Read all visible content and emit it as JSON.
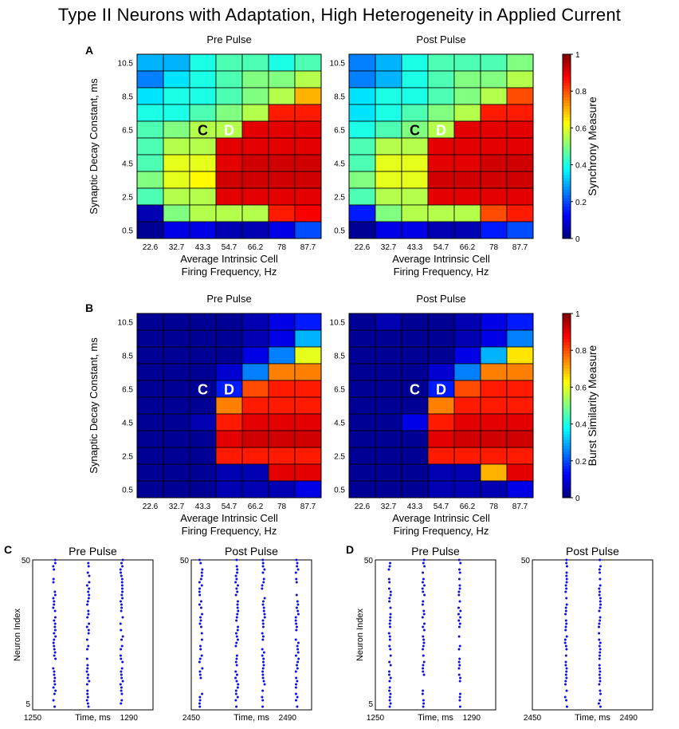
{
  "figure_title": "Type II Neurons with Adaptation, High Heterogeneity in Applied Current",
  "colors": {
    "scatter_dot": "#1010e0",
    "grid": "#000000"
  },
  "chart_data": [
    {
      "id": "A",
      "panel_label": "A",
      "type": "heatmap",
      "measure": "synchrony",
      "subplot_titles": [
        "Pre Pulse",
        "Post Pulse"
      ],
      "xlabel": [
        "Average Intrinsic Cell",
        "Firing Frequency, Hz"
      ],
      "ylabel": "Synaptic Decay Constant, ms",
      "x_ticks": [
        "22.6",
        "32.7",
        "43.3",
        "54.7",
        "66.2",
        "78",
        "87.7"
      ],
      "y_ticks_top_to_bottom": [
        "10.5",
        "8.5",
        "6.5",
        "4.5",
        "2.5",
        "0.5"
      ],
      "colorbar": {
        "label": "Synchrony Measure",
        "min": 0,
        "max": 1,
        "ticks": [
          "0",
          "0.2",
          "0.4",
          "0.6",
          "0.8",
          "1"
        ]
      },
      "markers": [
        {
          "text": "C",
          "col": 2,
          "row": 4,
          "color": "#000000"
        },
        {
          "text": "D",
          "col": 3,
          "row": 4,
          "color": "#ffffff"
        }
      ],
      "grids": [
        [
          [
            0.3,
            0.3,
            0.4,
            0.45,
            0.45,
            0.4,
            0.45
          ],
          [
            0.25,
            0.35,
            0.4,
            0.45,
            0.5,
            0.5,
            0.55
          ],
          [
            0.35,
            0.4,
            0.4,
            0.45,
            0.5,
            0.55,
            0.7
          ],
          [
            0.4,
            0.4,
            0.45,
            0.5,
            0.55,
            0.85,
            0.85
          ],
          [
            0.45,
            0.5,
            0.55,
            0.55,
            0.9,
            0.9,
            0.9
          ],
          [
            0.45,
            0.55,
            0.55,
            0.9,
            0.9,
            0.9,
            0.9
          ],
          [
            0.45,
            0.6,
            0.6,
            0.9,
            0.92,
            0.92,
            0.92
          ],
          [
            0.5,
            0.6,
            0.63,
            0.92,
            0.92,
            0.92,
            0.92
          ],
          [
            0.45,
            0.55,
            0.55,
            0.9,
            0.9,
            0.9,
            0.9
          ],
          [
            0.05,
            0.5,
            0.55,
            0.55,
            0.55,
            0.85,
            0.88
          ],
          [
            0.02,
            0.1,
            0.1,
            0.05,
            0.05,
            0.1,
            0.2
          ]
        ],
        [
          [
            0.25,
            0.3,
            0.4,
            0.45,
            0.45,
            0.45,
            0.5
          ],
          [
            0.25,
            0.3,
            0.4,
            0.45,
            0.5,
            0.5,
            0.55
          ],
          [
            0.35,
            0.4,
            0.4,
            0.45,
            0.5,
            0.55,
            0.8
          ],
          [
            0.35,
            0.4,
            0.45,
            0.5,
            0.55,
            0.85,
            0.85
          ],
          [
            0.4,
            0.45,
            0.5,
            0.55,
            0.9,
            0.9,
            0.9
          ],
          [
            0.45,
            0.55,
            0.55,
            0.9,
            0.9,
            0.9,
            0.9
          ],
          [
            0.45,
            0.6,
            0.6,
            0.9,
            0.9,
            0.92,
            0.92
          ],
          [
            0.5,
            0.6,
            0.6,
            0.92,
            0.92,
            0.92,
            0.92
          ],
          [
            0.45,
            0.55,
            0.55,
            0.9,
            0.9,
            0.9,
            0.9
          ],
          [
            0.15,
            0.5,
            0.55,
            0.55,
            0.55,
            0.8,
            0.85
          ],
          [
            0.02,
            0.1,
            0.1,
            0.05,
            0.05,
            0.15,
            0.2
          ]
        ]
      ]
    },
    {
      "id": "B",
      "panel_label": "B",
      "type": "heatmap",
      "measure": "burst similarity",
      "subplot_titles": [
        "Pre Pulse",
        "Post Pulse"
      ],
      "xlabel": [
        "Average Intrinsic Cell",
        "Firing Frequency, Hz"
      ],
      "ylabel": "Synaptic Decay Constant, ms",
      "x_ticks": [
        "22.6",
        "32.7",
        "43.3",
        "54.7",
        "66.2",
        "78",
        "87.7"
      ],
      "y_ticks_top_to_bottom": [
        "10.5",
        "8.5",
        "6.5",
        "4.5",
        "2.5",
        "0.5"
      ],
      "colorbar": {
        "label": "Burst Similarity Measure",
        "min": 0,
        "max": 1,
        "ticks": [
          "0",
          "0.2",
          "0.4",
          "0.6",
          "0.8",
          "1"
        ]
      },
      "markers": [
        {
          "text": "C",
          "col": 2,
          "row": 4,
          "color": "#ffffff"
        },
        {
          "text": "D",
          "col": 3,
          "row": 4,
          "color": "#ffffff"
        }
      ],
      "grids": [
        [
          [
            0.02,
            0.02,
            0.02,
            0.02,
            0.05,
            0.1,
            0.15
          ],
          [
            0.02,
            0.02,
            0.02,
            0.02,
            0.05,
            0.1,
            0.3
          ],
          [
            0.02,
            0.02,
            0.02,
            0.02,
            0.1,
            0.25,
            0.6
          ],
          [
            0.02,
            0.02,
            0.02,
            0.08,
            0.25,
            0.75,
            0.75
          ],
          [
            0.02,
            0.02,
            0.02,
            0.15,
            0.8,
            0.85,
            0.85
          ],
          [
            0.02,
            0.02,
            0.02,
            0.75,
            0.85,
            0.85,
            0.85
          ],
          [
            0.02,
            0.02,
            0.05,
            0.85,
            0.9,
            0.9,
            0.9
          ],
          [
            0.02,
            0.02,
            0.02,
            0.9,
            0.92,
            0.92,
            0.92
          ],
          [
            0.02,
            0.02,
            0.02,
            0.85,
            0.85,
            0.85,
            0.85
          ],
          [
            0.02,
            0.02,
            0.02,
            0.05,
            0.05,
            0.9,
            0.9
          ],
          [
            0.02,
            0.02,
            0.02,
            0.05,
            0.05,
            0.05,
            0.1
          ]
        ],
        [
          [
            0.02,
            0.05,
            0.02,
            0.02,
            0.05,
            0.1,
            0.15
          ],
          [
            0.02,
            0.02,
            0.02,
            0.02,
            0.05,
            0.1,
            0.25
          ],
          [
            0.02,
            0.02,
            0.02,
            0.02,
            0.1,
            0.3,
            0.65
          ],
          [
            0.02,
            0.02,
            0.02,
            0.08,
            0.25,
            0.75,
            0.75
          ],
          [
            0.02,
            0.02,
            0.02,
            0.15,
            0.8,
            0.85,
            0.85
          ],
          [
            0.02,
            0.02,
            0.02,
            0.75,
            0.85,
            0.85,
            0.85
          ],
          [
            0.02,
            0.02,
            0.1,
            0.85,
            0.9,
            0.9,
            0.9
          ],
          [
            0.02,
            0.02,
            0.02,
            0.9,
            0.92,
            0.92,
            0.92
          ],
          [
            0.02,
            0.02,
            0.02,
            0.85,
            0.85,
            0.85,
            0.85
          ],
          [
            0.02,
            0.02,
            0.02,
            0.05,
            0.05,
            0.7,
            0.9
          ],
          [
            0.02,
            0.02,
            0.02,
            0.05,
            0.05,
            0.05,
            0.1
          ]
        ]
      ]
    },
    {
      "id": "C",
      "panel_label": "C",
      "type": "scatter",
      "style": "raster",
      "subplots": [
        {
          "title": "Pre Pulse",
          "xlim": [
            1250,
            1300
          ],
          "x_ticks": [
            "1250",
            "1290"
          ],
          "y_ticks": [
            "5",
            "50"
          ],
          "ylabel": "Neuron Index",
          "xlabel": "Time, ms",
          "bursts": [
            1259,
            1273,
            1287
          ],
          "jitter": 0.5
        },
        {
          "title": "Post Pulse",
          "xlim": [
            2450,
            2500
          ],
          "x_ticks": [
            "2450",
            "2490"
          ],
          "y_ticks": [
            "50"
          ],
          "ylabel": "",
          "xlabel": "Time, ms",
          "bursts": [
            2454,
            2469,
            2480,
            2494
          ],
          "jitter": 0.6
        }
      ]
    },
    {
      "id": "D",
      "panel_label": "D",
      "type": "scatter",
      "style": "raster",
      "subplots": [
        {
          "title": "Pre Pulse",
          "xlim": [
            1250,
            1300
          ],
          "x_ticks": [
            "1250",
            "1290"
          ],
          "y_ticks": [
            "5",
            "50"
          ],
          "ylabel": "Neuron Index",
          "xlabel": "Time, ms",
          "bursts": [
            1256,
            1270,
            1285
          ],
          "jitter": 0.4
        },
        {
          "title": "Post Pulse",
          "xlim": [
            2450,
            2500
          ],
          "x_ticks": [
            "2450",
            "2490"
          ],
          "y_ticks": [
            "50"
          ],
          "ylabel": "",
          "xlabel": "Time, ms",
          "bursts": [
            2464,
            2478
          ],
          "jitter": 0.4
        }
      ]
    }
  ]
}
